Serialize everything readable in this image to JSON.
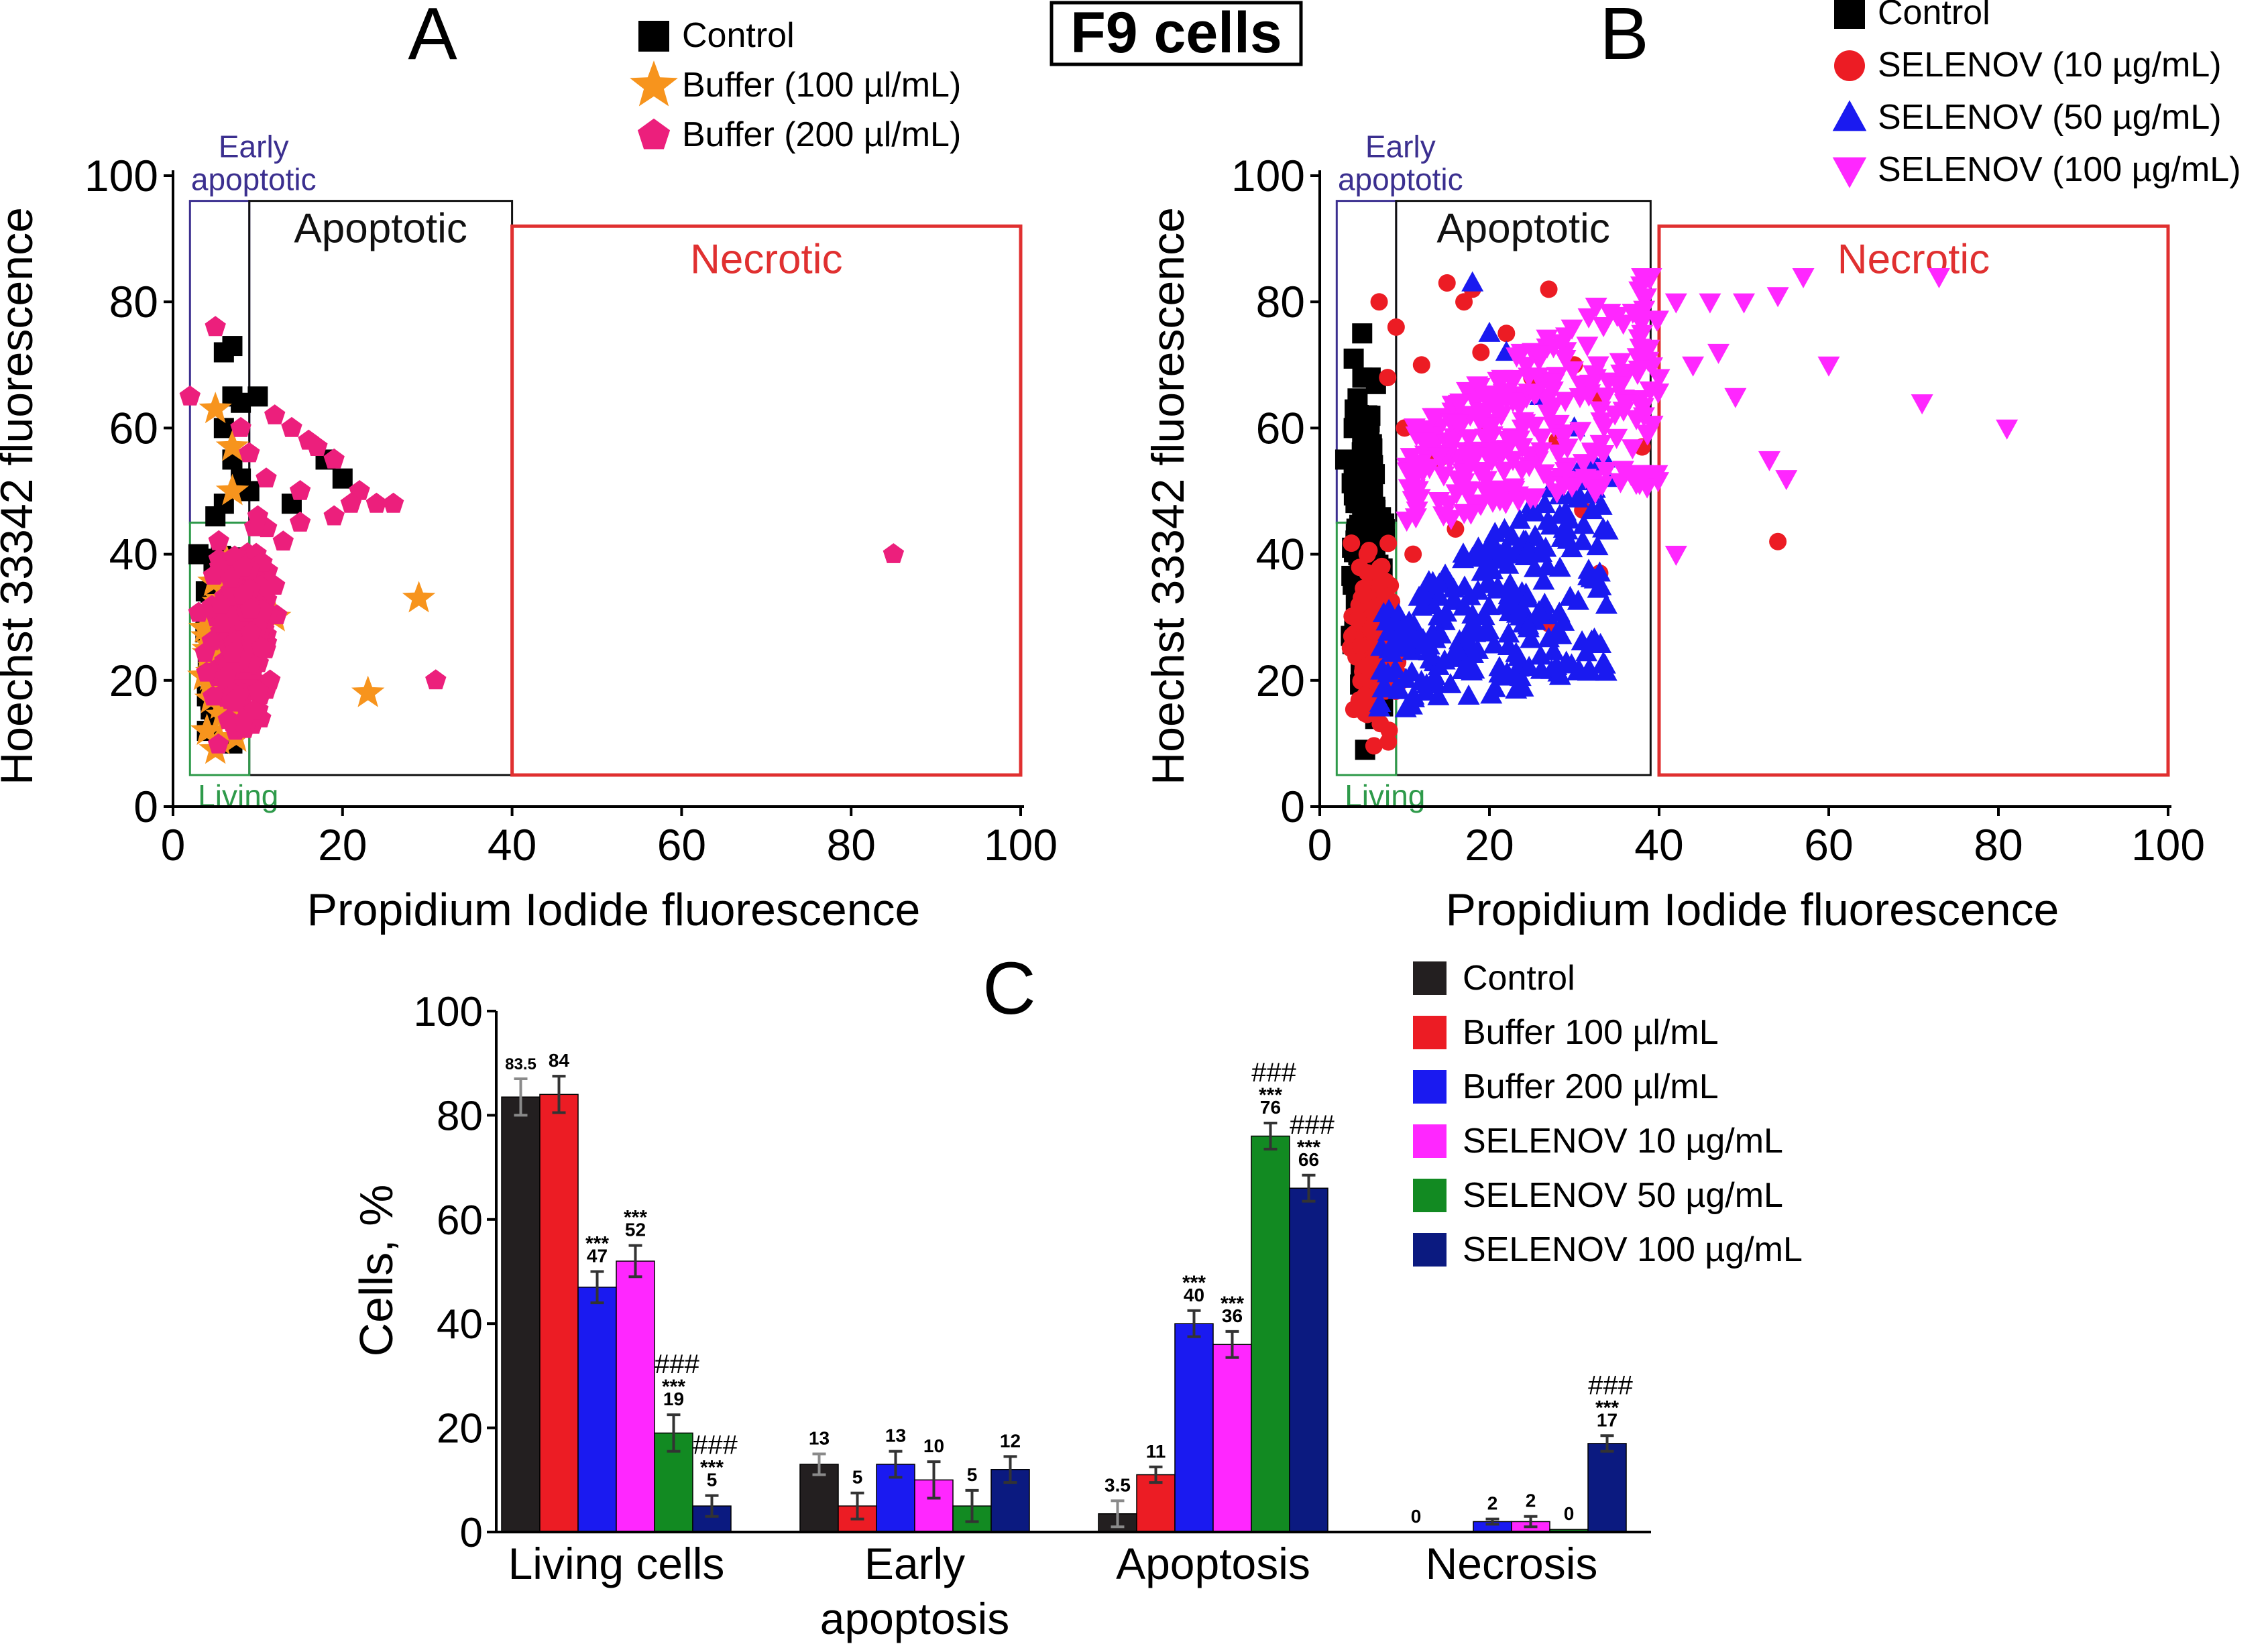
{
  "figure_title": "F9 cells",
  "chart_data": [
    {
      "panel": "A",
      "type": "scatter",
      "xlabel": "Propidium Iodide  fluorescence",
      "ylabel": "Hoechst 33342  fluorescence",
      "xlim": [
        0,
        100
      ],
      "ylim": [
        0,
        100
      ],
      "xticks": [
        0,
        20,
        40,
        60,
        80,
        100
      ],
      "yticks": [
        0,
        20,
        40,
        60,
        80,
        100
      ],
      "regions": [
        {
          "label": "Early\napoptotic",
          "x": [
            2,
            9
          ],
          "y": [
            45,
            96
          ],
          "color": "#3b2f8f"
        },
        {
          "label": "Apoptotic",
          "x": [
            9,
            40
          ],
          "y": [
            5,
            96
          ],
          "color": "#111111"
        },
        {
          "label": "Necrotic",
          "x": [
            40,
            100
          ],
          "y": [
            5,
            92
          ],
          "color": "#e03030"
        },
        {
          "label": "Living",
          "x": [
            2,
            9
          ],
          "y": [
            5,
            45
          ],
          "color": "#2e9a4a"
        }
      ],
      "series": [
        {
          "name": "Control",
          "marker": "square",
          "color": "#000000",
          "cluster": {
            "x": [
              3,
              9
            ],
            "y": [
              10,
              45
            ],
            "n": 140
          },
          "points": [
            [
              6,
              72
            ],
            [
              7,
              73
            ],
            [
              7,
              65
            ],
            [
              8,
              64
            ],
            [
              10,
              65
            ],
            [
              6,
              60
            ],
            [
              7,
              55
            ],
            [
              8,
              52
            ],
            [
              18,
              55
            ],
            [
              20,
              52
            ],
            [
              14,
              48
            ],
            [
              9,
              50
            ],
            [
              6,
              48
            ],
            [
              5,
              46
            ],
            [
              8,
              20
            ],
            [
              9,
              15
            ],
            [
              7,
              10
            ],
            [
              4,
              12
            ],
            [
              5,
              33
            ],
            [
              3,
              40
            ]
          ]
        },
        {
          "name": "Buffer (100 µl/mL)",
          "marker": "star",
          "color": "#f7941d",
          "cluster": {
            "x": [
              3,
              10
            ],
            "y": [
              8,
              40
            ],
            "n": 110
          },
          "points": [
            [
              5,
              63
            ],
            [
              7,
              57
            ],
            [
              7,
              50
            ],
            [
              29,
              33
            ],
            [
              23,
              18
            ],
            [
              5,
              9
            ],
            [
              4,
              12
            ],
            [
              12,
              30
            ],
            [
              10,
              36
            ]
          ]
        },
        {
          "name": "Buffer (200 µl/mL)",
          "marker": "pentagon",
          "color": "#ec1f7c",
          "cluster": {
            "x": [
              3,
              13
            ],
            "y": [
              8,
              46
            ],
            "n": 230
          },
          "points": [
            [
              5,
              76
            ],
            [
              2,
              65
            ],
            [
              12,
              62
            ],
            [
              14,
              60
            ],
            [
              16,
              58
            ],
            [
              17,
              57
            ],
            [
              19,
              55
            ],
            [
              22,
              50
            ],
            [
              19,
              46
            ],
            [
              21,
              48
            ],
            [
              24,
              48
            ],
            [
              26,
              48
            ],
            [
              15,
              50
            ],
            [
              11,
              52
            ],
            [
              9,
              56
            ],
            [
              13,
              42
            ],
            [
              12,
              35
            ],
            [
              31,
              20
            ],
            [
              85,
              40
            ],
            [
              10,
              46
            ],
            [
              8,
              60
            ],
            [
              15,
              45
            ]
          ]
        }
      ]
    },
    {
      "panel": "B",
      "type": "scatter",
      "xlabel": "Propidium Iodide  fluorescence",
      "ylabel": "Hoechst 33342  fluorescence",
      "xlim": [
        0,
        100
      ],
      "ylim": [
        0,
        100
      ],
      "xticks": [
        0,
        20,
        40,
        60,
        80,
        100
      ],
      "yticks": [
        0,
        20,
        40,
        60,
        80,
        100
      ],
      "regions": [
        {
          "label": "Early\napoptotic",
          "x": [
            2,
            9
          ],
          "y": [
            45,
            96
          ],
          "color": "#3b2f8f"
        },
        {
          "label": "Apoptotic",
          "x": [
            9,
            39
          ],
          "y": [
            5,
            96
          ],
          "color": "#111111"
        },
        {
          "label": "Necrotic",
          "x": [
            40,
            100
          ],
          "y": [
            5,
            92
          ],
          "color": "#e03030"
        },
        {
          "label": "Living",
          "x": [
            2,
            9
          ],
          "y": [
            5,
            45
          ],
          "color": "#2e9a4a"
        }
      ],
      "series": [
        {
          "name": "Control",
          "marker": "square",
          "color": "#000000",
          "cluster": {
            "x": [
              3,
              8
            ],
            "y": [
              10,
              75
            ],
            "n": 170
          },
          "points": [
            [
              5,
              75
            ],
            [
              4,
              71
            ],
            [
              6,
              68
            ],
            [
              4,
              60
            ],
            [
              5,
              58
            ],
            [
              3,
              55
            ],
            [
              4,
              52
            ],
            [
              6,
              48
            ]
          ]
        },
        {
          "name": "SELENOV (10 µg/mL)",
          "marker": "circle",
          "color": "#ec1c24",
          "cluster": {
            "x": [
              3,
              10
            ],
            "y": [
              8,
              45
            ],
            "n": 130
          },
          "points": [
            [
              7,
              80
            ],
            [
              15,
              83
            ],
            [
              17,
              80
            ],
            [
              18,
              82
            ],
            [
              22,
              75
            ],
            [
              19,
              72
            ],
            [
              27,
              82
            ],
            [
              25,
              68
            ],
            [
              30,
              70
            ],
            [
              33,
              65
            ],
            [
              38,
              57
            ],
            [
              27,
              29
            ],
            [
              33,
              37
            ],
            [
              54,
              42
            ],
            [
              10,
              60
            ],
            [
              12,
              70
            ],
            [
              14,
              55
            ],
            [
              20,
              60
            ],
            [
              23,
              50
            ],
            [
              8,
              68
            ],
            [
              9,
              76
            ],
            [
              31,
              47
            ],
            [
              28,
              58
            ],
            [
              16,
              44
            ],
            [
              11,
              40
            ]
          ]
        },
        {
          "name": "SELENOV (50 µg/mL)",
          "marker": "triangle",
          "color": "#1a1af0",
          "cluster": {
            "x": [
              7,
              34
            ],
            "y": [
              12,
              60
            ],
            "n": 260
          },
          "points": [
            [
              18,
              83
            ],
            [
              20,
              75
            ],
            [
              22,
              72
            ],
            [
              26,
              65
            ],
            [
              30,
              60
            ],
            [
              32,
              55
            ],
            [
              34,
              52
            ],
            [
              31,
              42
            ],
            [
              33,
              37
            ]
          ]
        },
        {
          "name": "SELENOV (100 µg/mL)",
          "marker": "triangle-down",
          "color": "#ff27ff",
          "cluster": {
            "x": [
              10,
              40
            ],
            "y": [
              35,
              82
            ],
            "n": 290
          },
          "points": [
            [
              38,
              84
            ],
            [
              42,
              80
            ],
            [
              46,
              80
            ],
            [
              50,
              80
            ],
            [
              54,
              81
            ],
            [
              57,
              84
            ],
            [
              73,
              84
            ],
            [
              47,
              72
            ],
            [
              60,
              70
            ],
            [
              71,
              64
            ],
            [
              81,
              60
            ],
            [
              49,
              65
            ],
            [
              53,
              55
            ],
            [
              42,
              40
            ],
            [
              55,
              52
            ],
            [
              38,
              75
            ],
            [
              44,
              70
            ],
            [
              36,
              64
            ],
            [
              40,
              68
            ]
          ]
        }
      ]
    },
    {
      "panel": "C",
      "type": "bar",
      "ylabel": "Cells, %",
      "ylim": [
        0,
        100
      ],
      "yticks": [
        0,
        20,
        40,
        60,
        80,
        100
      ],
      "categories": [
        "Living cells",
        "Early\napoptosis",
        "Apoptosis",
        "Necrosis"
      ],
      "series": [
        {
          "name": "Control",
          "color": "#231f20",
          "values": [
            83.5,
            13,
            3.5,
            0
          ],
          "errors": [
            3.5,
            2,
            2.5,
            0
          ],
          "labels": [
            "83.5",
            "13",
            "3.5",
            "0"
          ],
          "sig": [
            "",
            "",
            "",
            ""
          ]
        },
        {
          "name": "Buffer 100 µl/mL",
          "color": "#ec1c24",
          "values": [
            84,
            5,
            11,
            0
          ],
          "errors": [
            3.5,
            2.5,
            1.5,
            0
          ],
          "labels": [
            "84",
            "5",
            "11",
            ""
          ],
          "sig": [
            "",
            "",
            "",
            ""
          ]
        },
        {
          "name": "Buffer 200 µl/mL",
          "color": "#1a1af0",
          "values": [
            47,
            13,
            40,
            2
          ],
          "errors": [
            3,
            2.5,
            2.5,
            0.5
          ],
          "labels": [
            "47",
            "13",
            "40",
            "2"
          ],
          "sig": [
            "***",
            "",
            "***",
            ""
          ]
        },
        {
          "name": "SELENOV 10 µg/mL",
          "color": "#ff27ff",
          "values": [
            52,
            10,
            36,
            2
          ],
          "errors": [
            3,
            3.5,
            2.5,
            1
          ],
          "labels": [
            "52",
            "10",
            "36",
            "2"
          ],
          "sig": [
            "***",
            "",
            "***",
            ""
          ]
        },
        {
          "name": "SELENOV 50 µg/mL",
          "color": "#128a22",
          "values": [
            19,
            5,
            76,
            0.5
          ],
          "errors": [
            3.5,
            3,
            2.5,
            0
          ],
          "labels": [
            "19",
            "5",
            "76",
            "0"
          ],
          "sig": [
            "###\n***",
            "",
            "###\n***",
            ""
          ]
        },
        {
          "name": "SELENOV 100 µg/mL",
          "color": "#0b1a80",
          "values": [
            5,
            12,
            66,
            17
          ],
          "errors": [
            2,
            2.5,
            2.5,
            1.5
          ],
          "labels": [
            "5",
            "12",
            "66",
            "17"
          ],
          "sig": [
            "###\n***",
            "",
            "###\n***",
            "###\n***"
          ]
        }
      ]
    }
  ]
}
